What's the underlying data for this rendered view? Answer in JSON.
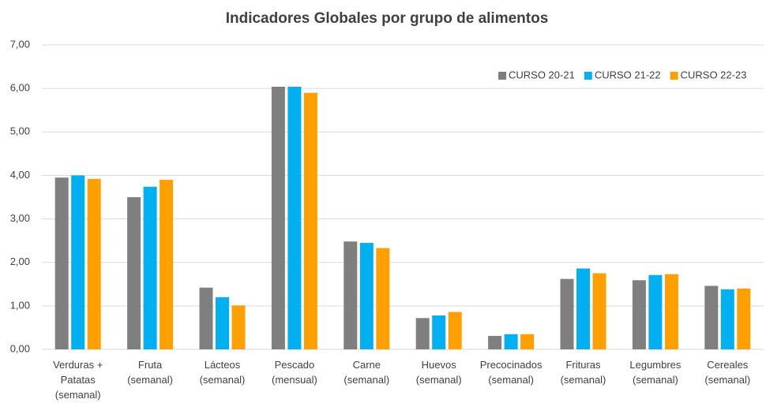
{
  "chart_data": {
    "type": "bar",
    "title": "Indicadores Globales por grupo de alimentos",
    "categories": [
      "Verduras +\nPatatas\n(semanal)",
      "Fruta\n(semanal)",
      "Lácteos\n(semanal)",
      "Pescado\n(mensual)",
      "Carne\n(semanal)",
      "Huevos\n(semanal)",
      "Precocinados\n(semanal)",
      "Frituras\n(semanal)",
      "Legumbres\n(semanal)",
      "Cereales\n(semanal)"
    ],
    "series": [
      {
        "name": "CURSO 20-21",
        "color": "#7f7f7f",
        "values": [
          3.95,
          3.5,
          1.42,
          6.04,
          2.48,
          0.72,
          0.31,
          1.62,
          1.59,
          1.46
        ]
      },
      {
        "name": "CURSO 21-22",
        "color": "#00b0f0",
        "values": [
          4.0,
          3.74,
          1.2,
          6.04,
          2.45,
          0.78,
          0.35,
          1.86,
          1.71,
          1.38
        ]
      },
      {
        "name": "CURSO 22-23",
        "color": "#ffa000",
        "values": [
          3.92,
          3.9,
          1.01,
          5.9,
          2.33,
          0.86,
          0.35,
          1.75,
          1.73,
          1.4
        ]
      }
    ],
    "ylim": [
      0,
      7
    ],
    "yticks": [
      {
        "value": 0,
        "label": "0,00"
      },
      {
        "value": 1,
        "label": "1,00"
      },
      {
        "value": 2,
        "label": "2,00"
      },
      {
        "value": 3,
        "label": "3,00"
      },
      {
        "value": 4,
        "label": "4,00"
      },
      {
        "value": 5,
        "label": "5,00"
      },
      {
        "value": 6,
        "label": "6,00"
      },
      {
        "value": 7,
        "label": "7,00"
      }
    ],
    "grid": true,
    "legend": "top-right"
  }
}
